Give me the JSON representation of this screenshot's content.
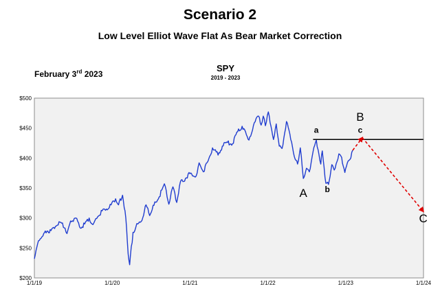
{
  "header": {
    "title": "Scenario 2",
    "subtitle": "Low Level Elliot Wave Flat As Bear Market Correction",
    "date_prefix": "February 3",
    "date_suffix": "rd",
    "date_year": " 2023"
  },
  "chart_data": {
    "type": "line",
    "title": "SPY",
    "subtitle": "2019 - 2023",
    "xlabel": "",
    "ylabel": "",
    "x_ticks": [
      "1/1/19",
      "1/1/20",
      "1/1/21",
      "1/1/22",
      "1/1/23",
      "1/1/24"
    ],
    "y_ticks": [
      "$500",
      "$450",
      "$400",
      "$350",
      "$300",
      "$250",
      "$200"
    ],
    "xlim": [
      "2019-01-01",
      "2024-01-01"
    ],
    "ylim": [
      200,
      500
    ],
    "grid": false,
    "series": [
      {
        "color": "#1f3ccf",
        "points": [
          [
            "2019-01-01",
            232
          ],
          [
            "2019-01-20",
            262
          ],
          [
            "2019-02-10",
            270
          ],
          [
            "2019-03-01",
            278
          ],
          [
            "2019-03-20",
            279
          ],
          [
            "2019-04-10",
            286
          ],
          [
            "2019-05-01",
            293
          ],
          [
            "2019-05-25",
            283
          ],
          [
            "2019-06-03",
            274
          ],
          [
            "2019-06-20",
            295
          ],
          [
            "2019-07-15",
            300
          ],
          [
            "2019-08-05",
            283
          ],
          [
            "2019-08-25",
            290
          ],
          [
            "2019-09-15",
            300
          ],
          [
            "2019-10-03",
            289
          ],
          [
            "2019-10-25",
            302
          ],
          [
            "2019-11-15",
            312
          ],
          [
            "2019-12-05",
            315
          ],
          [
            "2019-12-27",
            322
          ],
          [
            "2020-01-17",
            332
          ],
          [
            "2020-01-31",
            322
          ],
          [
            "2020-02-19",
            338
          ],
          [
            "2020-03-05",
            300
          ],
          [
            "2020-03-16",
            240
          ],
          [
            "2020-03-23",
            222
          ],
          [
            "2020-04-08",
            276
          ],
          [
            "2020-04-30",
            290
          ],
          [
            "2020-05-20",
            296
          ],
          [
            "2020-06-08",
            322
          ],
          [
            "2020-06-25",
            304
          ],
          [
            "2020-07-15",
            321
          ],
          [
            "2020-08-05",
            332
          ],
          [
            "2020-09-02",
            357
          ],
          [
            "2020-09-23",
            323
          ],
          [
            "2020-10-12",
            352
          ],
          [
            "2020-10-30",
            326
          ],
          [
            "2020-11-16",
            360
          ],
          [
            "2020-12-10",
            366
          ],
          [
            "2020-12-31",
            374
          ],
          [
            "2021-01-29",
            370
          ],
          [
            "2021-02-12",
            392
          ],
          [
            "2021-03-04",
            377
          ],
          [
            "2021-03-26",
            395
          ],
          [
            "2021-04-16",
            417
          ],
          [
            "2021-05-12",
            405
          ],
          [
            "2021-06-01",
            420
          ],
          [
            "2021-06-25",
            426
          ],
          [
            "2021-07-19",
            424
          ],
          [
            "2021-08-12",
            444
          ],
          [
            "2021-09-02",
            453
          ],
          [
            "2021-10-04",
            430
          ],
          [
            "2021-10-29",
            459
          ],
          [
            "2021-11-18",
            470
          ],
          [
            "2021-11-30",
            455
          ],
          [
            "2021-12-10",
            470
          ],
          [
            "2021-12-20",
            454
          ],
          [
            "2022-01-03",
            477
          ],
          [
            "2022-01-27",
            431
          ],
          [
            "2022-02-09",
            457
          ],
          [
            "2022-02-23",
            420
          ],
          [
            "2022-03-08",
            416
          ],
          [
            "2022-03-29",
            461
          ],
          [
            "2022-04-22",
            427
          ],
          [
            "2022-05-09",
            398
          ],
          [
            "2022-05-20",
            390
          ],
          [
            "2022-06-02",
            417
          ],
          [
            "2022-06-16",
            366
          ],
          [
            "2022-07-01",
            383
          ],
          [
            "2022-07-14",
            377
          ],
          [
            "2022-08-01",
            411
          ],
          [
            "2022-08-16",
            430
          ],
          [
            "2022-09-06",
            390
          ],
          [
            "2022-09-13",
            412
          ],
          [
            "2022-09-30",
            358
          ],
          [
            "2022-10-12",
            356
          ],
          [
            "2022-10-28",
            389
          ],
          [
            "2022-11-08",
            380
          ],
          [
            "2022-11-30",
            407
          ],
          [
            "2022-12-13",
            401
          ],
          [
            "2022-12-28",
            376
          ],
          [
            "2023-01-12",
            395
          ],
          [
            "2023-01-25",
            400
          ],
          [
            "2023-02-03",
            413
          ]
        ]
      }
    ],
    "projection": {
      "color": "#e00000",
      "points": [
        [
          "2023-02-03",
          413
        ],
        [
          "2023-03-20",
          434
        ],
        [
          "2023-12-31",
          311
        ]
      ]
    },
    "resistance": {
      "color": "#000000",
      "y": 431,
      "x_start": "2022-08-01",
      "x_end": "2023-12-31"
    },
    "annotations": [
      {
        "text": "A",
        "x": "2022-06-16",
        "y": 335
      },
      {
        "text": "a",
        "x": "2022-08-16",
        "y": 442
      },
      {
        "text": "b",
        "x": "2022-10-07",
        "y": 343
      },
      {
        "text": "c",
        "x": "2023-03-10",
        "y": 442
      },
      {
        "text": "B",
        "x": "2023-03-10",
        "y": 462
      },
      {
        "text": "C",
        "x": "2023-12-31",
        "y": 293
      }
    ]
  }
}
